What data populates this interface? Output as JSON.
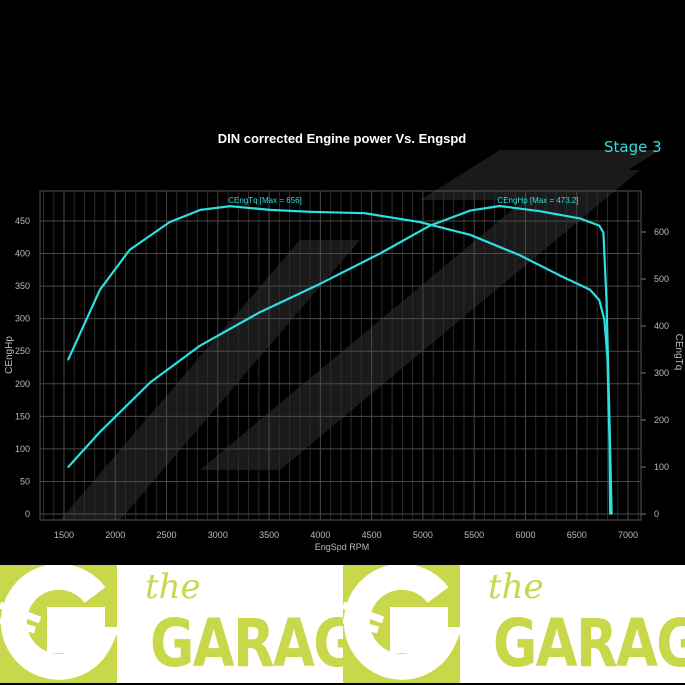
{
  "chart_data": {
    "type": "line",
    "title": "DIN corrected Engine power Vs. Engspd",
    "annotation": "Stage 3",
    "xlabel": "EngSpd RPM",
    "ylabel_left": "CEngHp",
    "ylabel_right": "CEngTq",
    "xlim": [
      1270,
      7130
    ],
    "ylim_left": [
      0,
      495
    ],
    "ylim_right": [
      0,
      690
    ],
    "x_ticks": [
      "1500",
      "2000",
      "2500",
      "3000",
      "3500",
      "4000",
      "4500",
      "5000",
      "5500",
      "6000",
      "6500",
      "7000"
    ],
    "y_left_ticks": [
      "0",
      "50",
      "100",
      "150",
      "200",
      "250",
      "300",
      "350",
      "400",
      "450"
    ],
    "y_right_ticks": [
      "0",
      "100",
      "200",
      "300",
      "400",
      "500",
      "600"
    ],
    "grid": true,
    "series": [
      {
        "name": "CEngTq",
        "legend": "CEngTq [Max = 656]",
        "axis": "right",
        "color": "#2de0e0",
        "x": [
          1540,
          1850,
          2140,
          2530,
          2830,
          3120,
          3510,
          3900,
          4430,
          4970,
          5460,
          5940,
          6330,
          6630,
          6720,
          6770,
          6800,
          6820,
          6825
        ],
        "y": [
          328,
          477,
          562,
          621,
          647,
          655,
          647,
          643,
          640,
          621,
          594,
          551,
          508,
          477,
          455,
          413,
          330,
          150,
          0
        ]
      },
      {
        "name": "CEngHp",
        "legend": "CEngHp [Max = 473.2]",
        "axis": "left",
        "color": "#2de0e0",
        "x": [
          1540,
          1850,
          2340,
          2830,
          3410,
          3990,
          4580,
          5070,
          5460,
          5750,
          6140,
          6530,
          6720,
          6760,
          6790,
          6820,
          6840
        ],
        "y": [
          72,
          126,
          202,
          259,
          310,
          353,
          400,
          443,
          466,
          473,
          465,
          454,
          443,
          432,
          328,
          144,
          0
        ]
      }
    ]
  },
  "banner": {
    "logo_text_small": "the",
    "logo_text_large": "GARAGE",
    "brand_color": "#c8d84a"
  }
}
